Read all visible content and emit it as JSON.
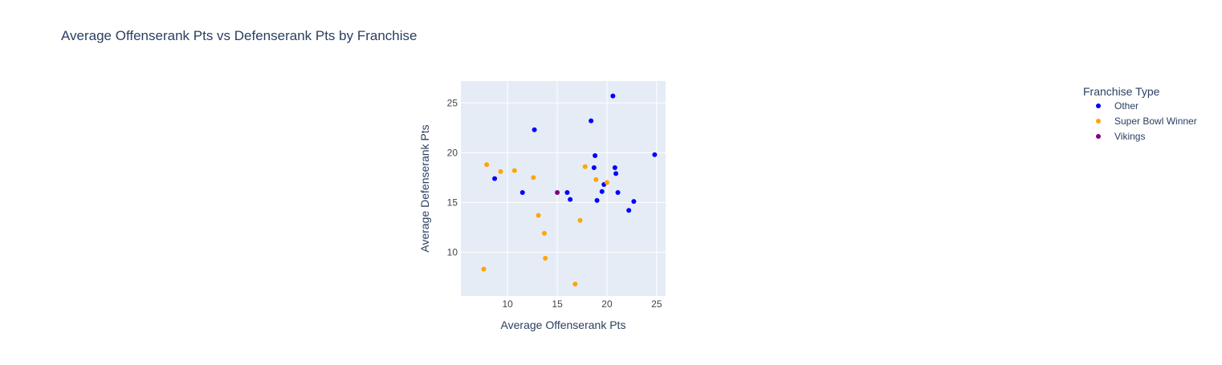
{
  "chart_data": {
    "type": "scatter",
    "title": "Average Offenserank Pts vs Defenserank Pts by Franchise",
    "xlabel": "Average Offenserank Pts",
    "ylabel": "Average Defenserank Pts",
    "xlim": [
      5.3,
      25.9
    ],
    "ylim": [
      5.6,
      27.2
    ],
    "xticks": [
      10,
      15,
      20,
      25
    ],
    "yticks": [
      10,
      15,
      20,
      25
    ],
    "grid": true,
    "legend": {
      "title": "Franchise Type",
      "placement": "top-right"
    },
    "series": [
      {
        "name": "Other",
        "color": "#0000ff",
        "points": [
          {
            "x": 20.6,
            "y": 25.7
          },
          {
            "x": 18.4,
            "y": 23.2
          },
          {
            "x": 12.7,
            "y": 22.3
          },
          {
            "x": 24.8,
            "y": 19.8
          },
          {
            "x": 18.8,
            "y": 19.7
          },
          {
            "x": 18.7,
            "y": 18.5
          },
          {
            "x": 20.8,
            "y": 18.5
          },
          {
            "x": 20.9,
            "y": 17.9
          },
          {
            "x": 8.7,
            "y": 17.4
          },
          {
            "x": 19.7,
            "y": 16.8
          },
          {
            "x": 11.5,
            "y": 16.0
          },
          {
            "x": 16.0,
            "y": 16.0
          },
          {
            "x": 19.5,
            "y": 16.1
          },
          {
            "x": 21.1,
            "y": 16.0
          },
          {
            "x": 16.3,
            "y": 15.3
          },
          {
            "x": 19.0,
            "y": 15.2
          },
          {
            "x": 22.7,
            "y": 15.1
          },
          {
            "x": 22.2,
            "y": 14.2
          }
        ]
      },
      {
        "name": "Super Bowl Winner",
        "color": "#ffa500",
        "points": [
          {
            "x": 7.9,
            "y": 18.8
          },
          {
            "x": 17.8,
            "y": 18.6
          },
          {
            "x": 9.3,
            "y": 18.1
          },
          {
            "x": 10.7,
            "y": 18.2
          },
          {
            "x": 12.6,
            "y": 17.5
          },
          {
            "x": 18.9,
            "y": 17.3
          },
          {
            "x": 20.0,
            "y": 17.0
          },
          {
            "x": 13.1,
            "y": 13.7
          },
          {
            "x": 17.3,
            "y": 13.2
          },
          {
            "x": 13.7,
            "y": 11.9
          },
          {
            "x": 13.8,
            "y": 9.4
          },
          {
            "x": 7.6,
            "y": 8.3
          },
          {
            "x": 16.8,
            "y": 6.8
          }
        ]
      },
      {
        "name": "Vikings",
        "color": "#800080",
        "points": [
          {
            "x": 15.0,
            "y": 16.0
          }
        ]
      }
    ]
  },
  "colors": {
    "plot_bg": "#e5ecf6",
    "grid": "#ffffff",
    "text": "#2a3f5f",
    "tick_text": "#444444"
  }
}
